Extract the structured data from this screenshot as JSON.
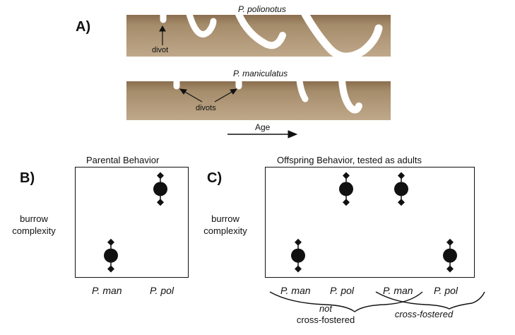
{
  "panel_a": {
    "label": "A)",
    "species_top": "P. polionotus",
    "species_bottom": "P. maniculatus",
    "divot_top": "divot",
    "divot_bottom": "divots",
    "age_label": "Age"
  },
  "panel_b": {
    "label": "B)",
    "title": "Parental Behavior",
    "ylabel_line1": "burrow",
    "ylabel_line2": "complexity",
    "categories": [
      "P. man",
      "P. pol"
    ]
  },
  "panel_c": {
    "label": "C)",
    "title": "Offspring Behavior, tested as adults",
    "ylabel_line1": "burrow",
    "ylabel_line2": "complexity",
    "categories": [
      "P. man",
      "P. pol",
      "P. man",
      "P. pol"
    ],
    "group1_line1": "not",
    "group1_line2": "cross-fostered",
    "group2": "cross-fostered"
  },
  "colors": {
    "soil": "#a58c6b",
    "burrow": "#ffffff",
    "ink": "#111111"
  },
  "chart_data": [
    {
      "type": "scatter",
      "title": "Parental Behavior",
      "ylabel": "burrow complexity",
      "categories": [
        "P. man",
        "P. pol"
      ],
      "values": [
        0.2,
        0.8
      ],
      "errors": [
        0.12,
        0.12
      ],
      "ylim": [
        0,
        1
      ]
    },
    {
      "type": "scatter",
      "title": "Offspring Behavior, tested as adults",
      "ylabel": "burrow complexity",
      "categories": [
        "P. man",
        "P. pol",
        "P. man",
        "P. pol"
      ],
      "groups": [
        "not cross-fostered",
        "not cross-fostered",
        "cross-fostered",
        "cross-fostered"
      ],
      "values": [
        0.2,
        0.8,
        0.8,
        0.2
      ],
      "errors": [
        0.12,
        0.12,
        0.12,
        0.12
      ],
      "ylim": [
        0,
        1
      ]
    }
  ]
}
